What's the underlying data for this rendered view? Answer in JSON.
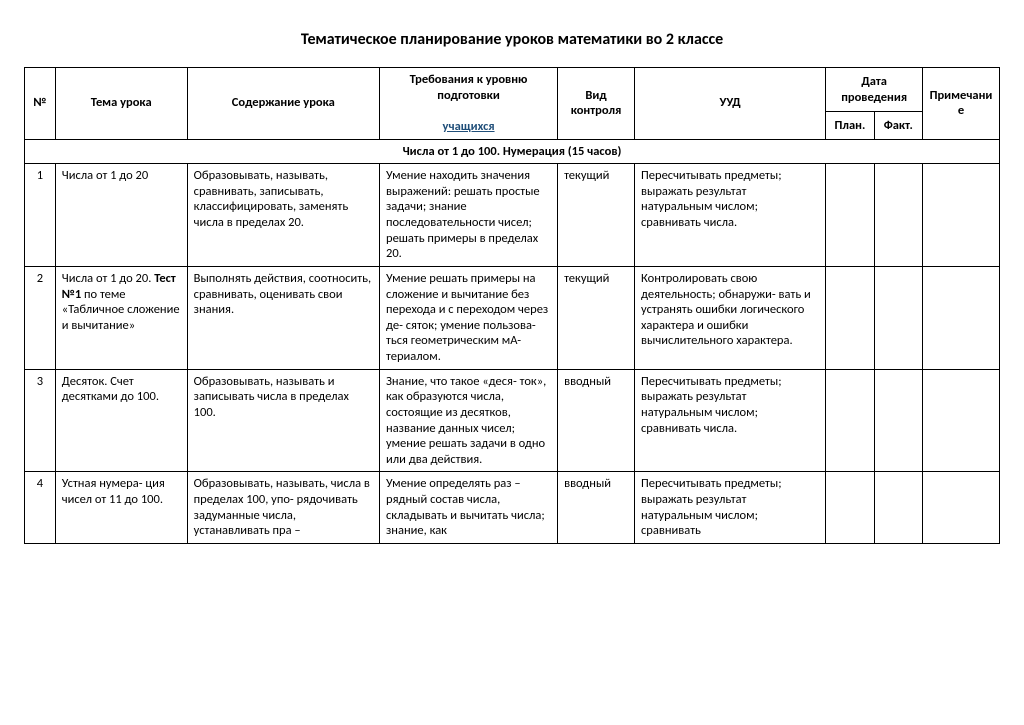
{
  "title": "Тематическое планирование уроков  математики  во 2 классе",
  "headers": {
    "num": "№",
    "tema": "Тема урока",
    "sod": "Содержание урока",
    "treb": "Требования к уровню подготовки",
    "treb_sub": "учащихся",
    "vid": "Вид контроля",
    "uud": "УУД",
    "data": "Дата проведения",
    "plan": "План.",
    "fact": "Факт.",
    "prim": "Примечание"
  },
  "section": "Числа от  1  до  100. Нумерация (15 часов)",
  "rows": [
    {
      "num": "1",
      "tema": "Числа от 1 до 20",
      "sod": "Образовывать, называть, сравнивать, записывать, классифицировать, заменять числа в пределах 20.",
      "treb": "Умение находить значения выражений: решать простые задачи; знание последовательности чисел; решать примеры в пределах 20.",
      "vid": "текущий",
      "uud": "Пересчитывать предметы; выражать результат натуральным числом; сравнивать числа."
    },
    {
      "num": "2",
      "tema_pre": "Числа от 1 до 20. ",
      "tema_bold": "Тест №1",
      "tema_post": " по теме «Табличное сложение и вычитание»",
      "sod": "Выполнять действия, соотносить, сравнивать, оценивать свои знания.",
      "treb": "Умение решать примеры на сложение и вычитание без перехода и с переходом через де- сяток; умение пользова- ться геометрическим мА- териалом.",
      "vid": "текущий",
      "uud": "Контролировать свою деятельность; обнаружи- вать и устранять ошибки логического характера и ошибки вычислительного характера."
    },
    {
      "num": "3",
      "tema": "Десяток. Счет десятками до 100.",
      "sod": "Образовывать, называть  и записывать числа в пределах 100.",
      "treb": "Знание, что такое «деся- ток», как образуются числа, состоящие из десятков, название данных чисел; умение решать задачи в одно или два действия.",
      "vid": "вводный",
      "uud": "Пересчитывать предметы; выражать результат натуральным числом; сравнивать числа."
    },
    {
      "num": "4",
      "tema": "Устная нумера- ция  чисел от 11 до 100.",
      "sod": "Образовывать, называть, числа в пределах 100, упо- рядочивать задуманные числа, устанавливать пра –",
      "treb": "Умение определять раз – рядный состав числа, складывать и вычитать числа; знание, как",
      "vid": "вводный",
      "uud": "Пересчитывать предметы; выражать результат натуральным числом; сравнивать"
    }
  ]
}
